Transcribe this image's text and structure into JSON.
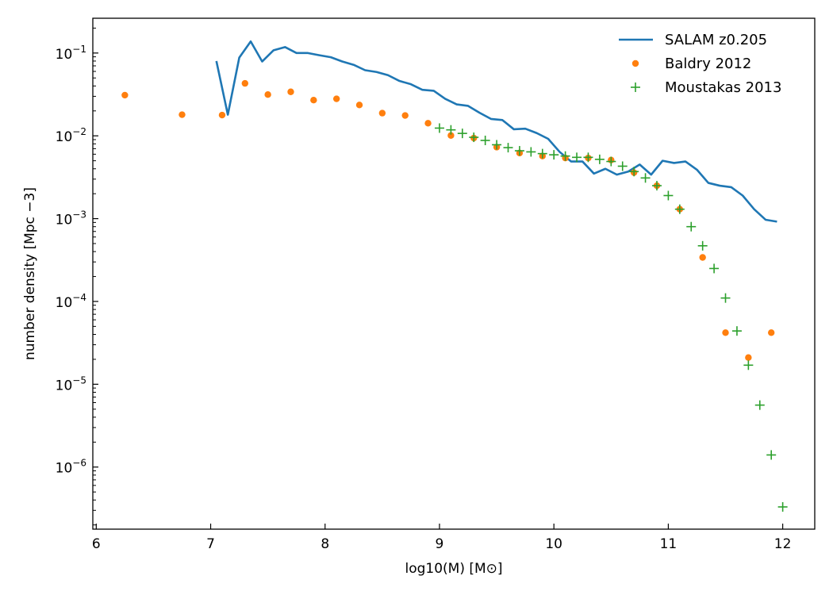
{
  "chart_data": {
    "type": "scatter",
    "xlabel": "log10(M) [M⊙]",
    "ylabel": "number density [Mpc −3]",
    "xlim": [
      5.97,
      12.28
    ],
    "ylim_log10": [
      -6.75,
      -0.58
    ],
    "y_scale": "log",
    "grid": false,
    "legend_position": "top-right",
    "x_ticks": [
      6,
      7,
      8,
      9,
      10,
      11,
      12
    ],
    "y_ticks": [
      {
        "exp": -1,
        "label_base": "10",
        "label_exp": "−1"
      },
      {
        "exp": -2,
        "label_base": "10",
        "label_exp": "−2"
      },
      {
        "exp": -3,
        "label_base": "10",
        "label_exp": "−3"
      },
      {
        "exp": -4,
        "label_base": "10",
        "label_exp": "−4"
      },
      {
        "exp": -5,
        "label_base": "10",
        "label_exp": "−5"
      },
      {
        "exp": -6,
        "label_base": "10",
        "label_exp": "−6"
      }
    ],
    "series": [
      {
        "name": "SALAM z0.205",
        "style": "line",
        "color": "#1f77b4",
        "x": [
          7.05,
          7.15,
          7.25,
          7.35,
          7.45,
          7.55,
          7.65,
          7.75,
          7.85,
          7.95,
          8.05,
          8.15,
          8.25,
          8.35,
          8.45,
          8.55,
          8.65,
          8.75,
          8.85,
          8.95,
          9.05,
          9.15,
          9.25,
          9.35,
          9.45,
          9.55,
          9.65,
          9.75,
          9.85,
          9.95,
          10.05,
          10.15,
          10.25,
          10.35,
          10.45,
          10.55,
          10.65,
          10.75,
          10.85,
          10.95,
          11.05,
          11.15,
          11.25,
          11.35,
          11.45,
          11.55,
          11.65,
          11.75,
          11.85,
          11.95
        ],
        "y": [
          0.08,
          0.018,
          0.088,
          0.138,
          0.079,
          0.108,
          0.118,
          0.1,
          0.1,
          0.094,
          0.089,
          0.079,
          0.072,
          0.062,
          0.059,
          0.054,
          0.046,
          0.042,
          0.036,
          0.035,
          0.028,
          0.024,
          0.023,
          0.019,
          0.016,
          0.0155,
          0.012,
          0.0122,
          0.0108,
          0.0092,
          0.0064,
          0.0049,
          0.0049,
          0.0035,
          0.004,
          0.0034,
          0.0037,
          0.0045,
          0.0034,
          0.005,
          0.0047,
          0.0049,
          0.0039,
          0.0027,
          0.0025,
          0.0024,
          0.0019,
          0.0013,
          0.00097,
          0.00092
        ]
      },
      {
        "name": "Baldry 2012",
        "style": "dot",
        "color": "#ff7f0e",
        "x": [
          6.25,
          6.75,
          7.1,
          7.3,
          7.5,
          7.7,
          7.9,
          8.1,
          8.3,
          8.5,
          8.7,
          8.9,
          9.1,
          9.3,
          9.5,
          9.7,
          9.9,
          10.1,
          10.3,
          10.5,
          10.7,
          10.9,
          11.1,
          11.3,
          11.5,
          11.7,
          11.9
        ],
        "y": [
          0.031,
          0.018,
          0.0178,
          0.043,
          0.0315,
          0.034,
          0.027,
          0.028,
          0.0236,
          0.0188,
          0.0176,
          0.0142,
          0.0101,
          0.0094,
          0.0073,
          0.0062,
          0.0057,
          0.0054,
          0.0054,
          0.0051,
          0.0036,
          0.0025,
          0.0013,
          0.00034,
          4.2e-05,
          2.1e-05,
          4.2e-05
        ]
      },
      {
        "name": "Moustakas 2013",
        "style": "plus",
        "color": "#2ca02c",
        "x": [
          9.0,
          9.1,
          9.2,
          9.3,
          9.4,
          9.5,
          9.6,
          9.7,
          9.8,
          9.9,
          10.0,
          10.1,
          10.2,
          10.3,
          10.4,
          10.5,
          10.6,
          10.7,
          10.8,
          10.9,
          11.0,
          11.1,
          11.2,
          11.3,
          11.4,
          11.5,
          11.6,
          11.7,
          11.8,
          11.9,
          12.0
        ],
        "y": [
          0.0124,
          0.0118,
          0.0107,
          0.0096,
          0.0088,
          0.0078,
          0.0072,
          0.0066,
          0.0064,
          0.0061,
          0.0059,
          0.0057,
          0.0055,
          0.0055,
          0.0052,
          0.0049,
          0.0043,
          0.0037,
          0.0031,
          0.0025,
          0.0019,
          0.0013,
          0.0008,
          0.00047,
          0.00025,
          0.00011,
          4.4e-05,
          1.7e-05,
          5.6e-06,
          1.4e-06,
          3.3e-07
        ]
      }
    ]
  }
}
